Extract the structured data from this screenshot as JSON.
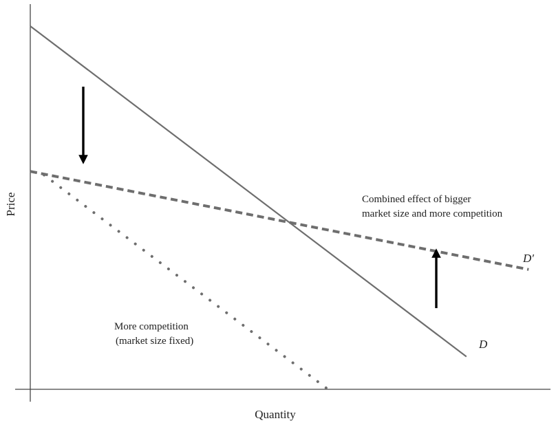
{
  "chart_data": {
    "type": "line",
    "title": "",
    "xlabel": "Quantity",
    "ylabel": "Price",
    "axis_ticks": false,
    "grid": false,
    "colors": {
      "curve": "#6e6e6e",
      "axis": "#444444",
      "arrow": "#000000",
      "text": "#222222"
    },
    "series": [
      {
        "name": "D",
        "style": "solid",
        "points": [
          [
            0,
            100
          ],
          [
            0.63,
            9
          ]
        ]
      },
      {
        "name": "D′",
        "style": "dashed",
        "points": [
          [
            0,
            60
          ],
          [
            0.72,
            33
          ]
        ]
      },
      {
        "name": "",
        "style": "dotted",
        "points": [
          [
            0.02,
            59
          ],
          [
            0.43,
            0
          ]
        ]
      }
    ],
    "annotations": [
      {
        "id": "more-competition",
        "lines": [
          "More competition",
          "(market size fixed)"
        ]
      },
      {
        "id": "combined-effect",
        "lines": [
          "Combined effect of bigger",
          "market size and more competition"
        ]
      }
    ],
    "arrows": [
      {
        "id": "down",
        "direction": "down"
      },
      {
        "id": "up",
        "direction": "up"
      }
    ]
  }
}
